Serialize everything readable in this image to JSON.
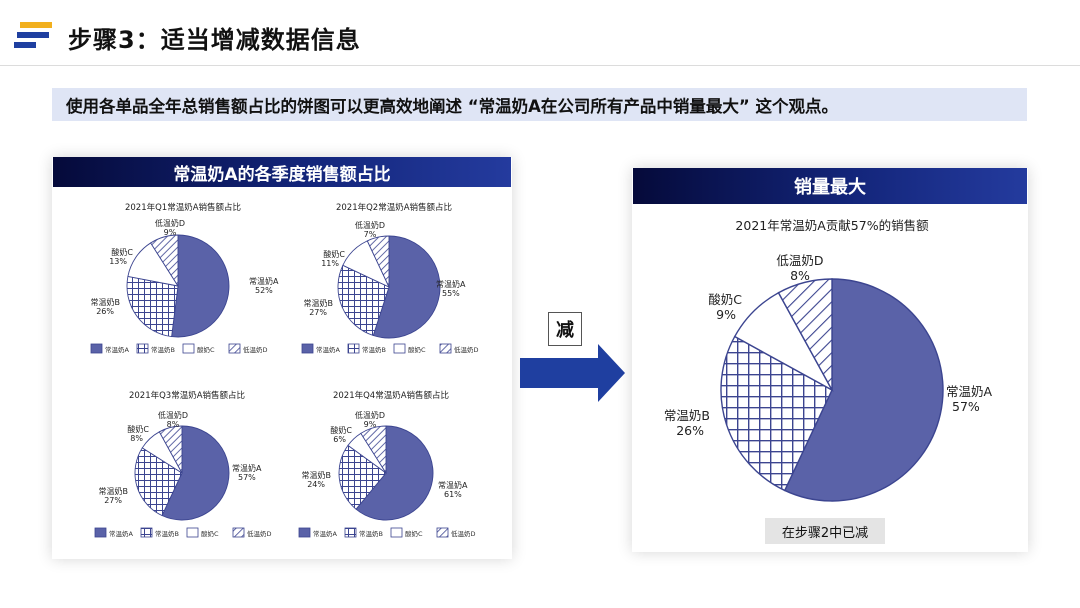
{
  "header": {
    "title": "步骤3：适当增减数据信息"
  },
  "subtitle": "使用各单品全年总销售额占比的饼图可以更高效地阐述 “常温奶A在公司所有产品中销量最大” 这个观点。",
  "left_panel": {
    "banner": "常温奶A的各季度销售额占比"
  },
  "right_panel": {
    "banner": "销量最大",
    "note": "在步骤2中已减"
  },
  "arrow": {
    "label": "减"
  },
  "colors": {
    "primary": "#5a62a8",
    "banner_dark": "#0a1250",
    "subtitle_bg": "#dfe5f5",
    "arrow": "#1f3fa0"
  },
  "icons": {
    "logo": "stripes-logo-icon",
    "arrow": "right-arrow-icon"
  },
  "chart_data": [
    {
      "type": "pie",
      "title": "2021年Q1常温奶A销售额占比",
      "categories": [
        "常温奶A",
        "常温奶B",
        "酸奶C",
        "低温奶D"
      ],
      "values": [
        52,
        26,
        13,
        9
      ],
      "value_labels": [
        "52%",
        "26%",
        "13%",
        "9%"
      ],
      "legend": [
        "常温奶A",
        "常温奶B",
        "酸奶C",
        "低温奶D"
      ],
      "legend_position": "bottom"
    },
    {
      "type": "pie",
      "title": "2021年Q2常温奶A销售额占比",
      "categories": [
        "常温奶A",
        "常温奶B",
        "酸奶C",
        "低温奶D"
      ],
      "values": [
        55,
        27,
        11,
        7
      ],
      "value_labels": [
        "55%",
        "27%",
        "11%",
        "7%"
      ],
      "legend": [
        "常温奶A",
        "常温奶B",
        "酸奶C",
        "低温奶D"
      ],
      "legend_position": "bottom"
    },
    {
      "type": "pie",
      "title": "2021年Q3常温奶A销售额占比",
      "categories": [
        "常温奶A",
        "常温奶B",
        "酸奶C",
        "低温奶D"
      ],
      "values": [
        57,
        27,
        8,
        8
      ],
      "value_labels": [
        "57%",
        "27%",
        "8%",
        "8%"
      ],
      "legend": [
        "常温奶A",
        "常温奶B",
        "酸奶C",
        "低温奶D"
      ],
      "legend_position": "bottom"
    },
    {
      "type": "pie",
      "title": "2021年Q4常温奶A销售额占比",
      "categories": [
        "常温奶A",
        "常温奶B",
        "酸奶C",
        "低温奶D"
      ],
      "values": [
        61,
        24,
        6,
        9
      ],
      "value_labels": [
        "61%",
        "24%",
        "6%",
        "9%"
      ],
      "legend": [
        "常温奶A",
        "常温奶B",
        "酸奶C",
        "低温奶D"
      ],
      "legend_position": "bottom"
    },
    {
      "type": "pie",
      "title": "2021年常温奶A贡献57%的销售额",
      "categories": [
        "常温奶A",
        "常温奶B",
        "酸奶C",
        "低温奶D"
      ],
      "values": [
        57,
        26,
        9,
        8
      ],
      "value_labels": [
        "57%",
        "26%",
        "9%",
        "8%"
      ],
      "legend": []
    }
  ]
}
